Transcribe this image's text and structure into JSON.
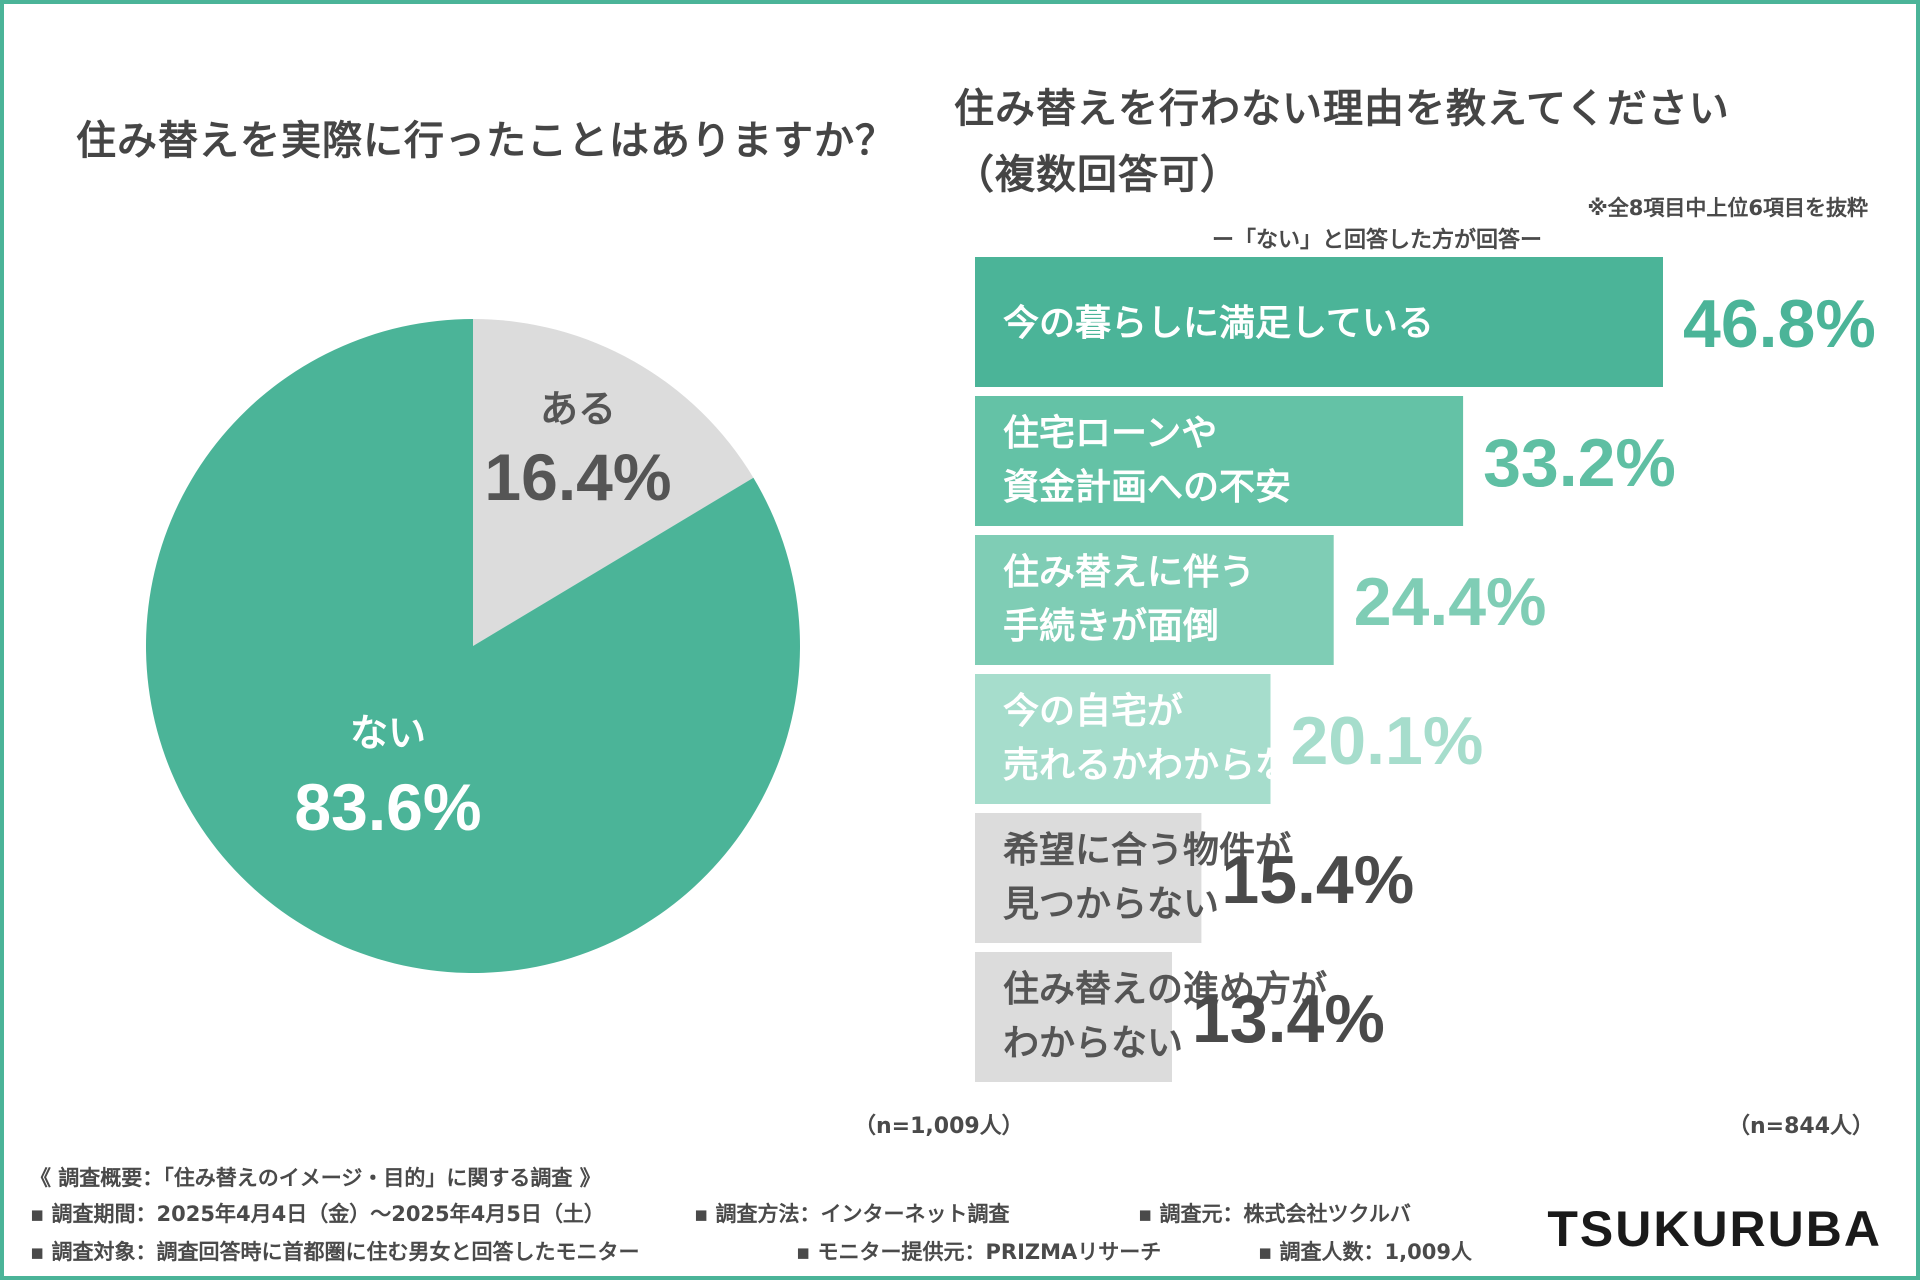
{
  "pie": {
    "title": "住み替えを実際に行ったことはありますか？",
    "n_label": "（n=1,009人）"
  },
  "bars": {
    "title_line1": "住み替えを行わない理由を教えてください",
    "title_line2": "（複数回答可）",
    "note": "※全8項目中上位6項目を抜粋",
    "subtitle": "ー「ない」と回答した方が回答ー",
    "n_label": "（n=844人）"
  },
  "footer": {
    "overview": "《 調査概要：「住み替えのイメージ・目的」に関する調査 》",
    "period": "▪ 調査期間：2025年4月4日（金）〜2025年4月5日（土）",
    "method": "▪ 調査方法：インターネット調査",
    "source": "▪ 調査元：株式会社ツクルバ",
    "target": "▪ 調査対象：調査回答時に首都圏に住む男女と回答したモニター",
    "provider": "▪ モニター提供元：PRIZMAリサーチ",
    "count": "▪ 調査人数：1,009人"
  },
  "brand": "TSUKURUBA",
  "colors": {
    "teal": "#4bb498",
    "gray": "#dcdcdc",
    "pct_gray": "#4a4a4a"
  },
  "chart_data": [
    {
      "type": "pie",
      "title": "住み替えを実際に行ったことはありますか？",
      "slices": [
        {
          "label": "ある",
          "value": 16.4,
          "display": "16.4%",
          "color": "#dcdcdc",
          "text_color": "#555555"
        },
        {
          "label": "ない",
          "value": 83.6,
          "display": "83.6%",
          "color": "#4bb498",
          "text_color": "#ffffff"
        }
      ]
    },
    {
      "type": "bar",
      "orientation": "horizontal",
      "title": "住み替えを行わない理由を教えてください（複数回答可）",
      "categories": [
        [
          "今の暮らしに満足している"
        ],
        [
          "住宅ローンや",
          "資金計画への不安"
        ],
        [
          "住み替えに伴う",
          "手続きが面倒"
        ],
        [
          "今の自宅が",
          "売れるかわからない"
        ],
        [
          "希望に合う物件が",
          "見つからない"
        ],
        [
          "住み替えの進め方が",
          "わからない"
        ]
      ],
      "values": [
        46.8,
        33.2,
        24.4,
        20.1,
        15.4,
        13.4
      ],
      "value_labels": [
        "46.8%",
        "33.2%",
        "24.4%",
        "20.1%",
        "15.4%",
        "13.4%"
      ],
      "bar_colors": [
        "#4bb498",
        "#64c2a6",
        "#7fcdb5",
        "#a6ddcc",
        "#dcdcdc",
        "#dcdcdc"
      ],
      "label_colors": [
        "#ffffff",
        "#ffffff",
        "#ffffff",
        "#ffffff",
        "#555555",
        "#555555"
      ],
      "pct_colors": [
        "#4bb498",
        "#5fbfa3",
        "#7fcdb5",
        "#a6ddcc",
        "#4a4a4a",
        "#4a4a4a"
      ],
      "xlim": [
        0,
        46.8
      ]
    }
  ]
}
